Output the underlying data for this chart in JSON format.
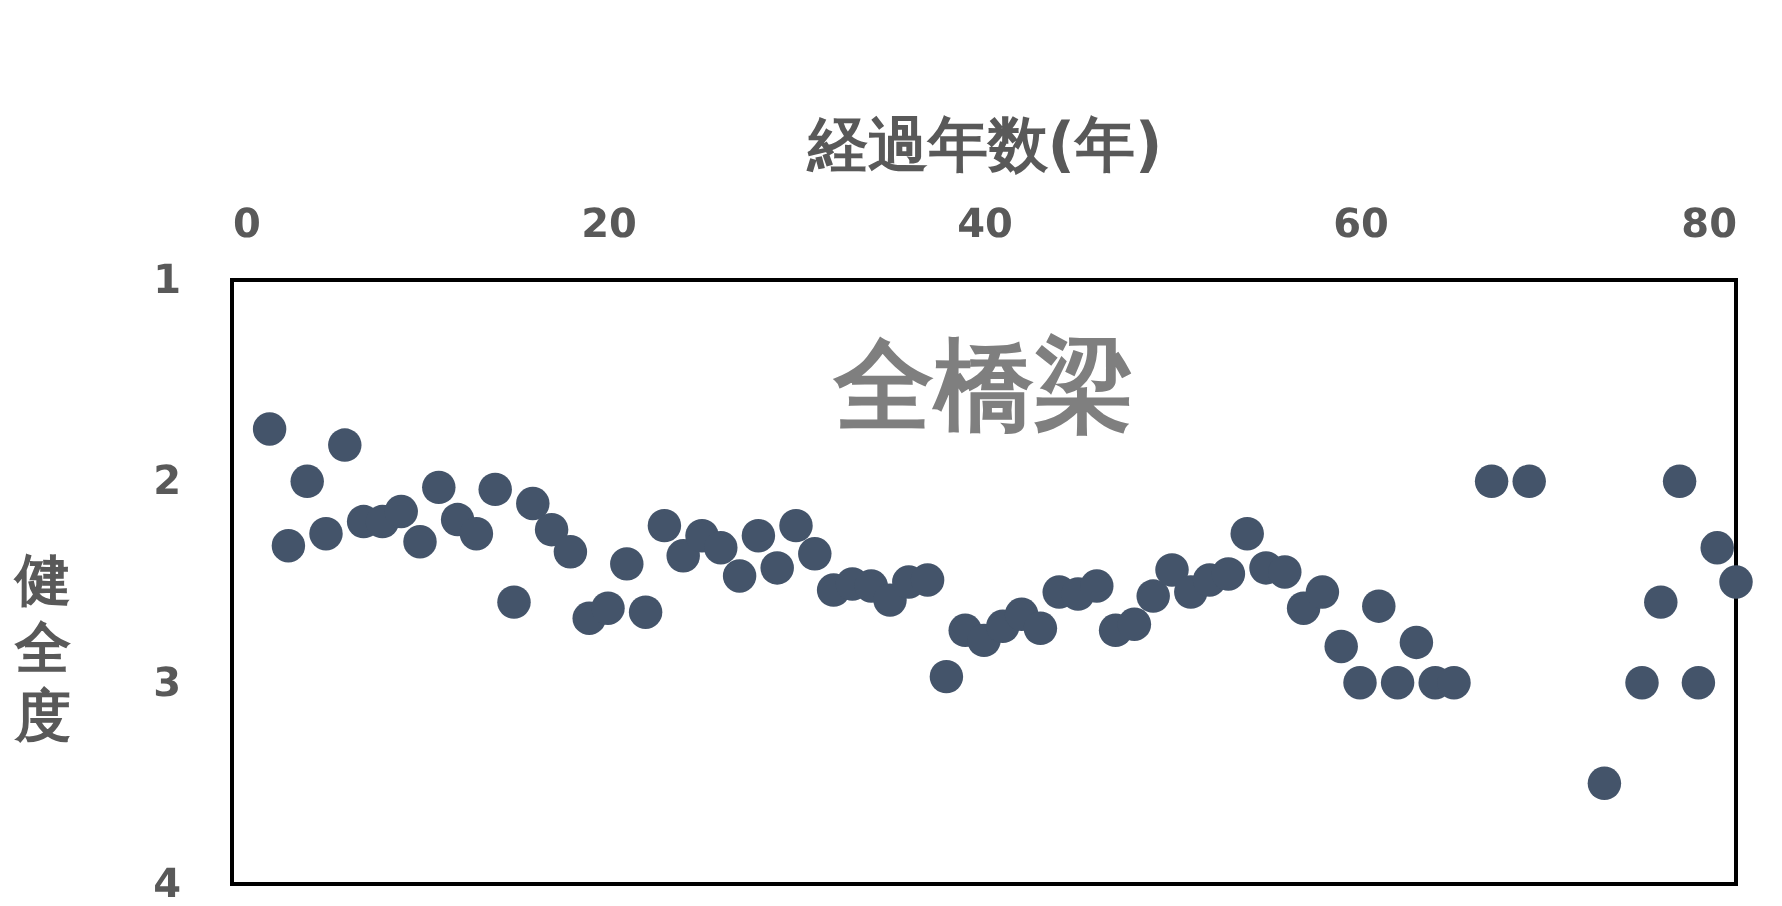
{
  "chart_data": {
    "type": "scatter",
    "title": "全橋梁",
    "xlabel": "経過年数(年)",
    "ylabel": "健全度",
    "x": [
      2,
      3,
      4,
      5,
      6,
      7,
      8,
      9,
      10,
      11,
      12,
      13,
      14,
      15,
      16,
      17,
      18,
      19,
      20,
      21,
      22,
      23,
      24,
      25,
      26,
      27,
      28,
      29,
      30,
      31,
      32,
      33,
      34,
      35,
      36,
      37,
      38,
      39,
      40,
      41,
      42,
      43,
      44,
      45,
      46,
      47,
      48,
      49,
      50,
      51,
      52,
      53,
      54,
      55,
      56,
      57,
      58,
      59,
      60,
      61,
      62,
      63,
      64,
      65,
      67,
      69,
      73,
      75,
      76,
      77,
      78,
      79,
      80
    ],
    "values": [
      1.74,
      2.32,
      2.0,
      2.26,
      1.82,
      2.2,
      2.2,
      2.15,
      2.3,
      2.03,
      2.19,
      2.26,
      2.04,
      2.6,
      2.11,
      2.24,
      2.35,
      2.68,
      2.63,
      2.41,
      2.65,
      2.22,
      2.37,
      2.27,
      2.33,
      2.47,
      2.27,
      2.43,
      2.22,
      2.36,
      2.54,
      2.51,
      2.52,
      2.59,
      2.5,
      2.49,
      2.97,
      2.74,
      2.79,
      2.72,
      2.66,
      2.73,
      2.55,
      2.56,
      2.52,
      2.74,
      2.71,
      2.57,
      2.44,
      2.55,
      2.49,
      2.46,
      2.26,
      2.43,
      2.45,
      2.63,
      2.55,
      2.82,
      3.0,
      2.62,
      3.0,
      2.8,
      3.0,
      3.0,
      2.0,
      2.0,
      3.5,
      3.0,
      2.6,
      2.0,
      3.0,
      2.33,
      2.5
    ],
    "color": "#44546a",
    "marker": "circle",
    "xlim": [
      0,
      80
    ],
    "xticks": [
      0,
      20,
      40,
      60,
      80
    ],
    "ylim": [
      4,
      1
    ],
    "yticks": [
      1,
      2,
      3,
      4
    ],
    "grid": false
  }
}
